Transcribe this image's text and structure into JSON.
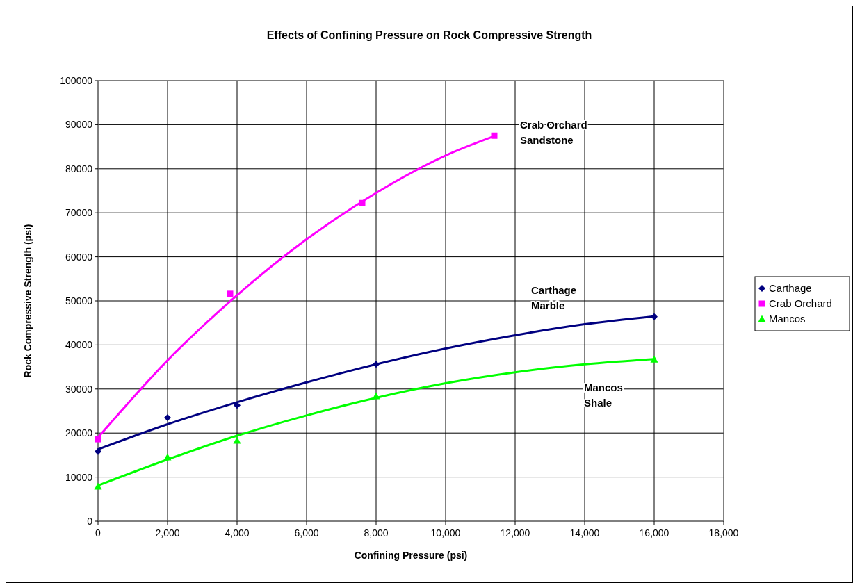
{
  "chart_data": {
    "type": "scatter",
    "title": "Effects of Confining Pressure on Rock Compressive Strength",
    "xlabel": "Confining Pressure (psi)",
    "ylabel": "Rock Compressive Strength (psi)",
    "series": [
      {
        "name": "Carthage",
        "color": "#000080",
        "marker": "diamond",
        "x": [
          0,
          2000,
          4000,
          8000,
          16000
        ],
        "values": [
          15800,
          23500,
          26300,
          35600,
          46400
        ]
      },
      {
        "name": "Crab Orchard",
        "color": "#ff00ff",
        "marker": "square",
        "x": [
          0,
          3800,
          7600,
          11400
        ],
        "values": [
          18600,
          51600,
          72200,
          87500
        ]
      },
      {
        "name": "Mancos",
        "color": "#00ff00",
        "marker": "triangle",
        "x": [
          0,
          2000,
          4000,
          8000,
          16000
        ],
        "values": [
          7900,
          14500,
          18300,
          28400,
          36700
        ]
      },
      {
        "type": "line",
        "color": "#000080",
        "marker": "none",
        "x": [
          0,
          2000,
          4000,
          6000,
          8000,
          10000,
          12000,
          14000,
          16000
        ],
        "values": [
          16300,
          22000,
          27000,
          31500,
          35600,
          39200,
          42200,
          44700,
          46500
        ]
      },
      {
        "type": "line",
        "color": "#ff00ff",
        "marker": "none",
        "x": [
          0,
          2000,
          4000,
          6000,
          8000,
          10000,
          11400
        ],
        "values": [
          19000,
          36500,
          51300,
          64000,
          74500,
          83000,
          87400
        ]
      },
      {
        "type": "line",
        "color": "#00ff00",
        "marker": "none",
        "x": [
          0,
          2000,
          4000,
          6000,
          8000,
          10000,
          12000,
          14000,
          16000
        ],
        "values": [
          8100,
          14000,
          19400,
          24000,
          28000,
          31300,
          33800,
          35600,
          36800
        ]
      }
    ],
    "xlim": [
      0,
      18000
    ],
    "xticks": [
      {
        "value": 0,
        "label": "0"
      },
      {
        "value": 2000,
        "label": "2,000"
      },
      {
        "value": 4000,
        "label": "4,000"
      },
      {
        "value": 6000,
        "label": "6,000"
      },
      {
        "value": 8000,
        "label": "8,000"
      },
      {
        "value": 10000,
        "label": "10,000"
      },
      {
        "value": 12000,
        "label": "12,000"
      },
      {
        "value": 14000,
        "label": "14,000"
      },
      {
        "value": 16000,
        "label": "16,000"
      },
      {
        "value": 18000,
        "label": "18,000"
      }
    ],
    "ylim": [
      0,
      100000
    ],
    "yticks": [
      0,
      10000,
      20000,
      30000,
      40000,
      50000,
      60000,
      70000,
      80000,
      90000,
      100000
    ],
    "grid": true,
    "legend": "right",
    "annotations": [
      "Crab Orchard\nSandstone",
      "Carthage\nMarble",
      "Mancos\nShale"
    ]
  }
}
